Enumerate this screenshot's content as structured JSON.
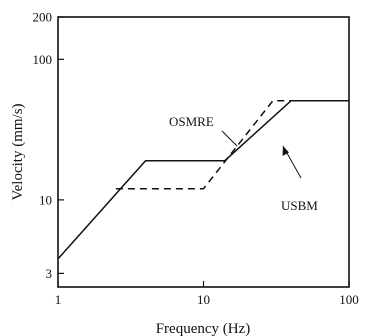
{
  "chart_data": {
    "type": "line",
    "title": "",
    "xlabel": "Frequency (Hz)",
    "ylabel": "Velocity (mm/s)",
    "xscale": "log",
    "yscale": "log",
    "xlim": [
      1,
      100
    ],
    "ylim": [
      2.4,
      200
    ],
    "grid": false,
    "legend": "none",
    "x_ticks": [
      {
        "value": 1,
        "label": "1"
      },
      {
        "value": 10,
        "label": "10"
      },
      {
        "value": 100,
        "label": "100"
      }
    ],
    "y_ticks": [
      {
        "value": 3,
        "label": "3"
      },
      {
        "value": 10,
        "label": "10"
      },
      {
        "value": 100,
        "label": "100"
      },
      {
        "value": 200,
        "label": "200"
      }
    ],
    "series": [
      {
        "name": "USBM",
        "style": "solid",
        "x": [
          1,
          4,
          14,
          40,
          100
        ],
        "y": [
          3.8,
          19,
          19,
          50.8,
          50.8
        ]
      },
      {
        "name": "OSMRE",
        "style": "dashed",
        "x": [
          2.5,
          10,
          30,
          100
        ],
        "y": [
          12,
          12,
          50.8,
          50.8
        ]
      }
    ],
    "annotations": [
      {
        "text": "OSMRE",
        "series": "OSMRE"
      },
      {
        "text": "USBM",
        "series": "USBM"
      }
    ]
  }
}
